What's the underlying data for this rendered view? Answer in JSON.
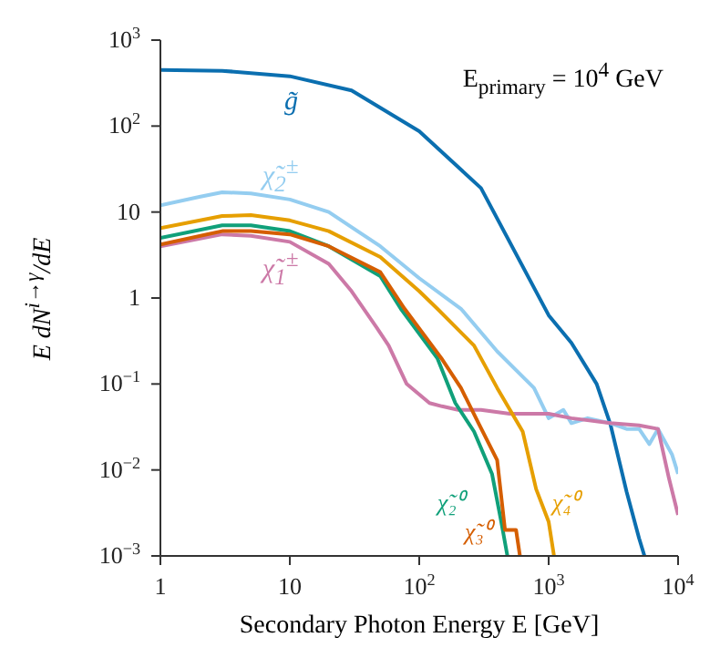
{
  "chart_data": {
    "type": "line",
    "xlabel": "Secondary Photon Energy E [GeV]",
    "ylabel": "E dN$^{i→γ}$/dE",
    "annotations": [
      "E$_{primary}$ = 10$^{4}$ GeV"
    ],
    "log": "xy",
    "marker": "none",
    "line_style": "solid",
    "xlim": [
      1,
      10000
    ],
    "xticks": [
      1,
      10,
      {
        "value": 100,
        "label": "10$^{2}$"
      },
      {
        "value": 1000,
        "label": "10$^{3}$"
      },
      {
        "value": 10000,
        "label": "10$^{4}$"
      }
    ],
    "ylim": [
      0.001,
      1000
    ],
    "yticks": [
      {
        "value": 0.001,
        "label": "10$^{−3}$"
      },
      {
        "value": 0.01,
        "label": "10$^{−2}$"
      },
      {
        "value": 0.1,
        "label": "10$^{−1}$"
      },
      1,
      10,
      {
        "value": 100,
        "label": "10$^{2}$"
      },
      {
        "value": 1000,
        "label": "10$^{3}$"
      }
    ],
    "series": [
      {
        "name": "g̃",
        "color": "#0b6fb0",
        "x": [
          1,
          3,
          10,
          30,
          100,
          300,
          1000,
          1500,
          2350,
          3000,
          4000,
          5000,
          5500
        ],
        "values": [
          450,
          440,
          380,
          260,
          87,
          19,
          0.63,
          0.3,
          0.1,
          0.034,
          0.0056,
          0.0016,
          0.001
        ]
      },
      {
        "name": "χ̃$_{2}$$^{±}$",
        "color": "#94cdf0",
        "x": [
          1,
          2,
          3,
          5,
          10,
          20,
          50,
          100,
          210,
          400,
          770,
          1000,
          1300,
          1500,
          2000,
          3000,
          4000,
          5000,
          6000,
          7000,
          9000,
          10000
        ],
        "values": [
          12,
          15,
          17,
          16.5,
          14,
          10,
          4,
          1.7,
          0.75,
          0.24,
          0.09,
          0.04,
          0.05,
          0.035,
          0.04,
          0.035,
          0.03,
          0.03,
          0.02,
          0.03,
          0.015,
          0.009
        ]
      },
      {
        "name": "χ̃$_{1}$$^{±}$",
        "color": "#cc79a7",
        "x": [
          1,
          3,
          5,
          10,
          20,
          30,
          47,
          58,
          80,
          120,
          150,
          200,
          300,
          500,
          1000,
          1500,
          3000,
          5000,
          7000,
          8500,
          10000
        ],
        "values": [
          4,
          5.5,
          5.3,
          4.5,
          2.5,
          1.2,
          0.45,
          0.28,
          0.1,
          0.06,
          0.055,
          0.05,
          0.05,
          0.045,
          0.045,
          0.04,
          0.035,
          0.033,
          0.03,
          0.008,
          0.003
        ]
      },
      {
        "name": "χ̃₂⁰",
        "color": "#10a07a",
        "x": [
          1,
          3,
          5,
          10,
          20,
          50,
          72,
          138,
          190,
          265,
          365,
          430,
          480
        ],
        "values": [
          5,
          7,
          7,
          6,
          4,
          1.8,
          0.75,
          0.2,
          0.06,
          0.028,
          0.009,
          0.0025,
          0.001
        ]
      },
      {
        "name": "χ̃₃⁰",
        "color": "#d55e00",
        "x": [
          1,
          3,
          5,
          10,
          20,
          50,
          77,
          148,
          210,
          290,
          400,
          460,
          560,
          600
        ],
        "values": [
          4.2,
          6,
          6,
          5.5,
          4,
          2,
          0.75,
          0.2,
          0.09,
          0.034,
          0.013,
          0.002,
          0.002,
          0.001
        ]
      },
      {
        "name": "χ̃₄⁰",
        "color": "#e69f00",
        "x": [
          1,
          3,
          5,
          10,
          20,
          50,
          100,
          138,
          265,
          400,
          630,
          800,
          1000,
          1100
        ],
        "values": [
          6.5,
          9,
          9.2,
          8,
          6,
          3,
          1.2,
          0.75,
          0.28,
          0.09,
          0.028,
          0.006,
          0.0025,
          0.001
        ]
      }
    ]
  }
}
